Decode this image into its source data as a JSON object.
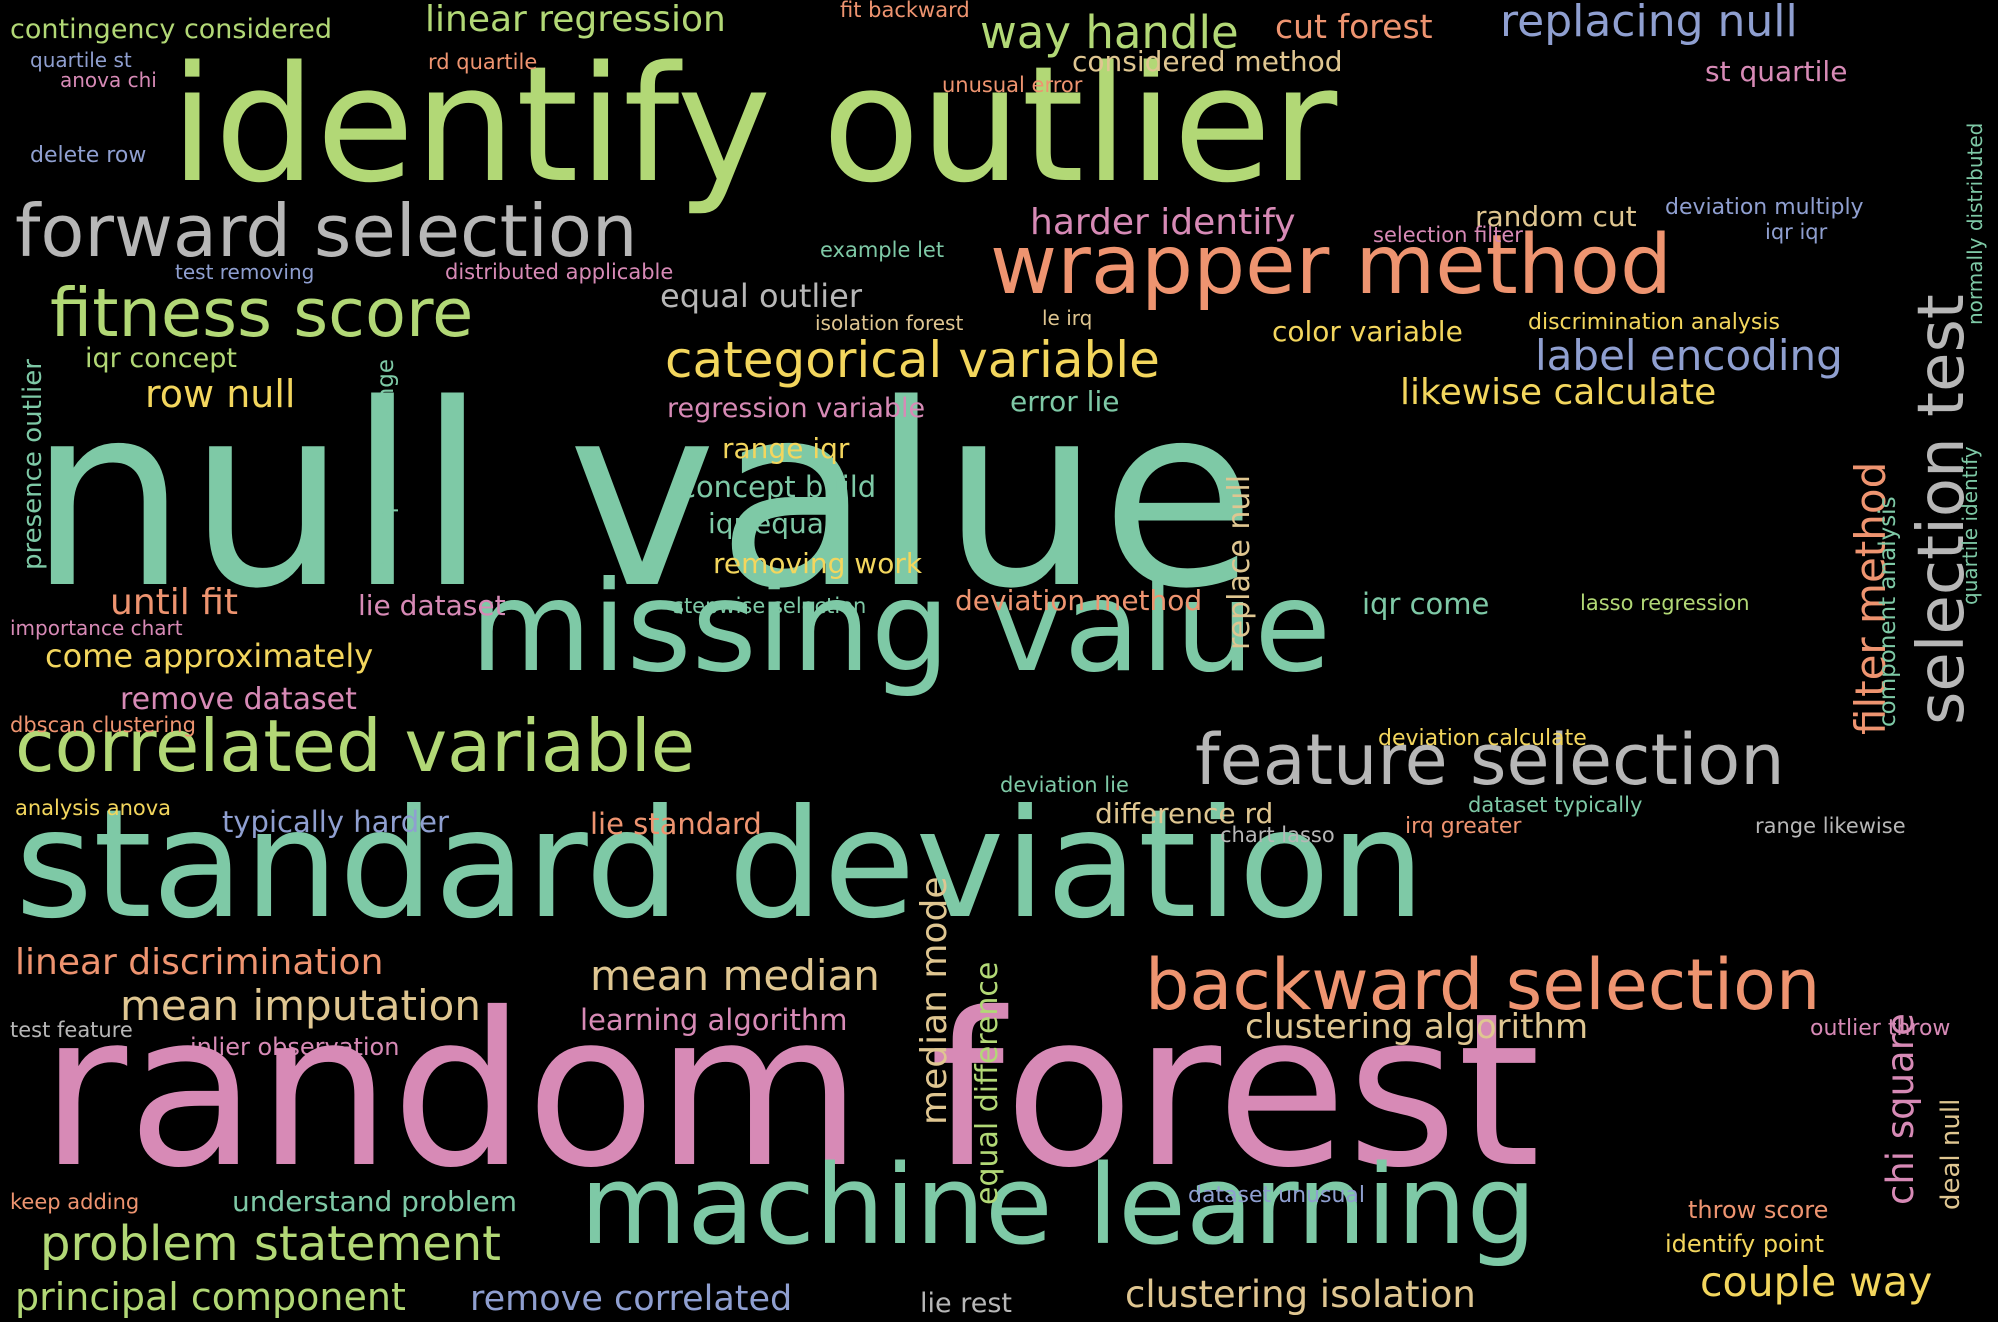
{
  "colors": {
    "background": "#000000",
    "teal": "#7ec9a6",
    "pink": "#d78ab6",
    "green": "#b2d876",
    "orange": "#ee9470",
    "gray": "#b7b7b7",
    "yellow": "#f3d65d",
    "periwinkle": "#8f9fd0",
    "tan": "#dfc691"
  },
  "words": [
    {
      "text": "null value",
      "color": "#7ec9a6"
    },
    {
      "text": "random forest",
      "color": "#d78ab6"
    },
    {
      "text": "identify outlier",
      "color": "#b2d876"
    },
    {
      "text": "standard deviation",
      "color": "#7ec9a6"
    },
    {
      "text": "missing value",
      "color": "#7ec9a6"
    },
    {
      "text": "machine learning",
      "color": "#7ec9a6"
    },
    {
      "text": "wrapper method",
      "color": "#ee9470"
    },
    {
      "text": "forward selection",
      "color": "#b7b7b7"
    },
    {
      "text": "correlated variable",
      "color": "#b2d876"
    },
    {
      "text": "feature selection",
      "color": "#b7b7b7"
    },
    {
      "text": "backward selection",
      "color": "#ee9470"
    },
    {
      "text": "fitness score",
      "color": "#b2d876"
    },
    {
      "text": "selection test",
      "color": "#b7b7b7"
    },
    {
      "text": "categorical variable",
      "color": "#f3d65d"
    },
    {
      "text": "problem statement",
      "color": "#b2d876"
    },
    {
      "text": "way handle",
      "color": "#b2d876"
    },
    {
      "text": "replacing null",
      "color": "#8f9fd0"
    },
    {
      "text": "label encoding",
      "color": "#8f9fd0"
    },
    {
      "text": "filter method",
      "color": "#ee9470"
    },
    {
      "text": "mean median",
      "color": "#dfc691"
    },
    {
      "text": "mean imputation",
      "color": "#dfc691"
    },
    {
      "text": "principal component",
      "color": "#b2d876"
    },
    {
      "text": "couple way",
      "color": "#f3d65d"
    },
    {
      "text": "clustering isolation",
      "color": "#dfc691"
    },
    {
      "text": "median mode",
      "color": "#dfc691"
    },
    {
      "text": "remove correlated",
      "color": "#8f9fd0"
    },
    {
      "text": "linear regression",
      "color": "#b2d876"
    },
    {
      "text": "chi square",
      "color": "#d78ab6"
    },
    {
      "text": "row null",
      "color": "#f3d65d"
    },
    {
      "text": "linear discrimination",
      "color": "#ee9470"
    },
    {
      "text": "clustering algorithm",
      "color": "#dfc691"
    },
    {
      "text": "equal outlier",
      "color": "#b7b7b7"
    },
    {
      "text": "likewise calculate",
      "color": "#f3d65d"
    },
    {
      "text": "until fit",
      "color": "#ee9470"
    },
    {
      "text": "come approximately",
      "color": "#f3d65d"
    },
    {
      "text": "harder identify",
      "color": "#d78ab6"
    },
    {
      "text": "cut forest",
      "color": "#ee9470"
    },
    {
      "text": "equal difference",
      "color": "#b2d876"
    },
    {
      "text": "replace null",
      "color": "#dfc691"
    },
    {
      "text": "remove dataset",
      "color": "#d78ab6"
    },
    {
      "text": "understand problem",
      "color": "#7ec9a6"
    },
    {
      "text": "contingency considered",
      "color": "#b2d876"
    },
    {
      "text": "considered method",
      "color": "#dfc691"
    },
    {
      "text": "presence outlier",
      "color": "#7ec9a6"
    },
    {
      "text": "interquartile range",
      "color": "#7ec9a6"
    },
    {
      "text": "lie standard",
      "color": "#ee9470"
    },
    {
      "text": "typically harder",
      "color": "#8f9fd0"
    },
    {
      "text": "difference rd",
      "color": "#dfc691"
    },
    {
      "text": "iqr come",
      "color": "#7ec9a6"
    },
    {
      "text": "color variable",
      "color": "#f3d65d"
    },
    {
      "text": "concept build",
      "color": "#7ec9a6"
    },
    {
      "text": "random cut",
      "color": "#dfc691"
    },
    {
      "text": "removing work",
      "color": "#f3d65d"
    },
    {
      "text": "deviation method",
      "color": "#ee9470"
    },
    {
      "text": "learning algorithm",
      "color": "#d78ab6"
    },
    {
      "text": "lie dataset",
      "color": "#d78ab6"
    },
    {
      "text": "iqr equal",
      "color": "#7ec9a6"
    },
    {
      "text": "iqr concept",
      "color": "#b2d876"
    },
    {
      "text": "st quartile",
      "color": "#d78ab6"
    },
    {
      "text": "range iqr",
      "color": "#f3d65d"
    },
    {
      "text": "deal null",
      "color": "#dfc691"
    },
    {
      "text": "component analysis",
      "color": "#7ec9a6"
    },
    {
      "text": "lie rest",
      "color": "#b7b7b7"
    },
    {
      "text": "regression variable",
      "color": "#d78ab6"
    },
    {
      "text": "error lie",
      "color": "#7ec9a6"
    },
    {
      "text": "inlier observation",
      "color": "#d78ab6"
    },
    {
      "text": "throw score",
      "color": "#ee9470"
    },
    {
      "text": "identify point",
      "color": "#f3d65d"
    },
    {
      "text": "lasso regression",
      "color": "#b2d876"
    },
    {
      "text": "quartile identify",
      "color": "#7ec9a6"
    },
    {
      "text": "normally distributed",
      "color": "#7ec9a6"
    },
    {
      "text": "dataset unusual",
      "color": "#8f9fd0"
    },
    {
      "text": "outlier throw",
      "color": "#d78ab6"
    },
    {
      "text": "deviation multiply",
      "color": "#8f9fd0"
    },
    {
      "text": "discrimination analysis",
      "color": "#f3d65d"
    },
    {
      "text": "dataset typically",
      "color": "#7ec9a6"
    },
    {
      "text": "deviation calculate",
      "color": "#f3d65d"
    },
    {
      "text": "irq greater",
      "color": "#ee9470"
    },
    {
      "text": "range likewise",
      "color": "#b7b7b7"
    },
    {
      "text": "delete row",
      "color": "#8f9fd0"
    },
    {
      "text": "rd quartile",
      "color": "#ee9470"
    },
    {
      "text": "fit backward",
      "color": "#ee9470"
    },
    {
      "text": "unusual error",
      "color": "#ee9470"
    },
    {
      "text": "quartile st",
      "color": "#8f9fd0"
    },
    {
      "text": "anova chi",
      "color": "#d78ab6"
    },
    {
      "text": "example let",
      "color": "#7ec9a6"
    },
    {
      "text": "test removing",
      "color": "#8f9fd0"
    },
    {
      "text": "distributed applicable",
      "color": "#d78ab6"
    },
    {
      "text": "isolation forest",
      "color": "#dfc691"
    },
    {
      "text": "le irq",
      "color": "#dfc691"
    },
    {
      "text": "selection filter",
      "color": "#d78ab6"
    },
    {
      "text": "iqr iqr",
      "color": "#8f9fd0"
    },
    {
      "text": "importance chart",
      "color": "#d78ab6"
    },
    {
      "text": "stepwise selection",
      "color": "#7ec9a6"
    },
    {
      "text": "dbscan clustering",
      "color": "#ee9470"
    },
    {
      "text": "analysis anova",
      "color": "#f3d65d"
    },
    {
      "text": "deviation lie",
      "color": "#7ec9a6"
    },
    {
      "text": "chart lasso",
      "color": "#b7b7b7"
    },
    {
      "text": "test feature",
      "color": "#b7b7b7"
    },
    {
      "text": "keep adding",
      "color": "#ee9470"
    }
  ]
}
